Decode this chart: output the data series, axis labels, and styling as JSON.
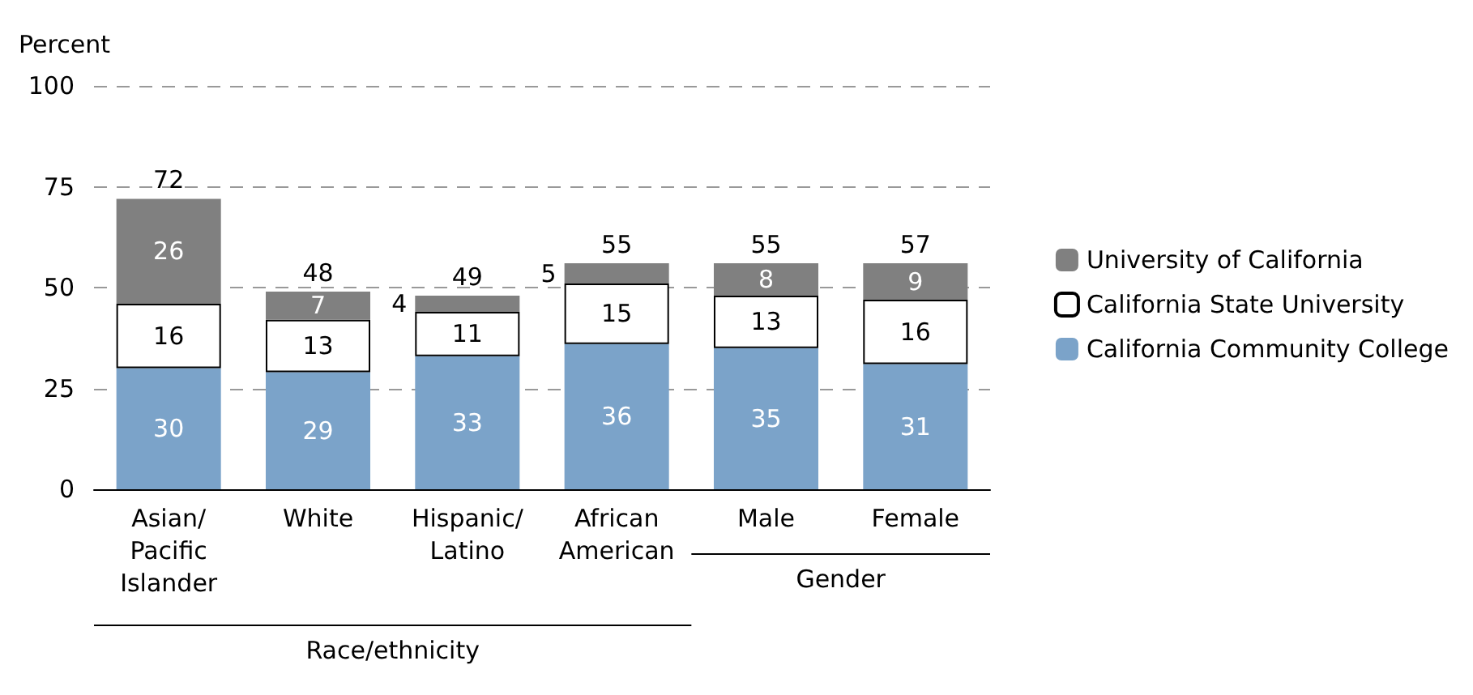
{
  "chart_data": {
    "type": "bar",
    "stacked": true,
    "ylabel": "Percent",
    "categories": [
      "Asian/\nPacific\nIslander",
      "White",
      "Hispanic/\nLatino",
      "African\nAmerican",
      "Male",
      "Female"
    ],
    "series": [
      {
        "name": "California Community College",
        "color": "#7ba3c9",
        "values": [
          30,
          29,
          33,
          36,
          35,
          31
        ]
      },
      {
        "name": "California State University",
        "color": "#ffffff",
        "values": [
          16,
          13,
          11,
          15,
          13,
          16
        ]
      },
      {
        "name": "University of California",
        "color": "#808080",
        "values": [
          26,
          7,
          4,
          5,
          8,
          9
        ]
      }
    ],
    "totals": [
      "72",
      "48",
      "49",
      "55",
      "55",
      "57"
    ],
    "data_labels": true,
    "ylim": [
      0,
      100
    ],
    "yticks": [
      0,
      25,
      50,
      75,
      100
    ],
    "grid": "y",
    "legend": "right",
    "annotations": [
      "Race/ethnicity",
      "Gender"
    ]
  }
}
